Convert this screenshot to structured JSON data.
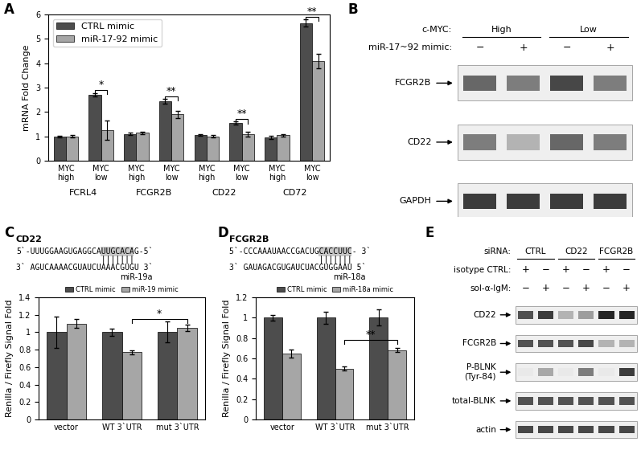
{
  "panel_labels": [
    "A",
    "B",
    "C",
    "D",
    "E"
  ],
  "chart_data": [
    {
      "type": "bar",
      "y_label": "mRNA Fold Change",
      "categories": [
        "MYC\nhigh",
        "MYC\nlow",
        "MYC\nhigh",
        "MYC\nlow",
        "MYC\nhigh",
        "MYC\nlow",
        "MYC\nhigh",
        "MYC\nlow"
      ],
      "groups": [
        "FCRL4",
        "FCGR2B",
        "CD22",
        "CD72"
      ],
      "series": [
        {
          "name": "CTRL mimic",
          "color": "#4d4d4d",
          "values": [
            1.0,
            2.7,
            1.1,
            2.45,
            1.05,
            1.55,
            0.95,
            5.65
          ],
          "errors": [
            0.03,
            0.07,
            0.04,
            0.1,
            0.04,
            0.05,
            0.06,
            0.15
          ]
        },
        {
          "name": "miR-17-92 mimic",
          "color": "#a6a6a6",
          "values": [
            1.0,
            1.25,
            1.15,
            1.9,
            1.0,
            1.1,
            1.05,
            4.1
          ],
          "errors": [
            0.05,
            0.4,
            0.05,
            0.15,
            0.05,
            0.1,
            0.05,
            0.3
          ]
        }
      ],
      "ylim": [
        0,
        6
      ],
      "yticks": [
        0,
        1,
        2,
        3,
        4,
        5,
        6
      ],
      "legend": "upper left",
      "significance": [
        {
          "label": "*",
          "from": [
            1,
            0
          ],
          "to": [
            1,
            1
          ],
          "y": 2.9
        },
        {
          "label": "**",
          "from": [
            3,
            0
          ],
          "to": [
            3,
            1
          ],
          "y": 2.65
        },
        {
          "label": "**",
          "from": [
            5,
            0
          ],
          "to": [
            5,
            1
          ],
          "y": 1.7
        },
        {
          "label": "**",
          "from": [
            7,
            0
          ],
          "to": [
            7,
            1
          ],
          "y": 5.9
        }
      ]
    },
    {
      "type": "bar",
      "title": "CD22",
      "y_label": "Renilla / Firefly Signal Fold",
      "alignment": {
        "target": "5`-UUUGGAAGUGAGGCAUUGCACAG-5`",
        "pairing": "                  |||||||",
        "mirna": "3` AGUCAAAACGUAUCUAAACGUGU 3`",
        "mirna_name": "miR-19a"
      },
      "categories": [
        "vector",
        "WT 3`UTR",
        "mut 3`UTR"
      ],
      "series": [
        {
          "name": "CTRL mimic",
          "color": "#4d4d4d",
          "values": [
            1.0,
            1.0,
            1.0
          ],
          "errors": [
            0.18,
            0.04,
            0.12
          ]
        },
        {
          "name": "miR-19 mimic",
          "color": "#a6a6a6",
          "values": [
            1.1,
            0.77,
            1.05
          ],
          "errors": [
            0.05,
            0.02,
            0.04
          ]
        }
      ],
      "ylim": [
        0,
        1.4
      ],
      "yticks": [
        0,
        0.2,
        0.4,
        0.6,
        0.8,
        1,
        1.2,
        1.4
      ],
      "legend": "top",
      "significance": [
        {
          "label": "*",
          "from": [
            1,
            1
          ],
          "to": [
            2,
            1
          ],
          "y": 1.15
        }
      ]
    },
    {
      "type": "bar",
      "title": "FCGR2B",
      "y_label": "Renilla / Firefly Signal Fold",
      "alignment": {
        "target": "5`-CCCAAAUAACCGACUGCACCUUC- 3`",
        "pairing": "                   |||||||",
        "mirna": "3` GAUAGACGUGAUCUACGUGGAAU 5`",
        "mirna_name": "miR-18a"
      },
      "categories": [
        "vector",
        "WT 3`UTR",
        "mut 3`UTR"
      ],
      "series": [
        {
          "name": "CTRL mimic",
          "color": "#4d4d4d",
          "values": [
            1.0,
            1.0,
            1.0
          ],
          "errors": [
            0.03,
            0.06,
            0.08
          ]
        },
        {
          "name": "miR-18a mimic",
          "color": "#a6a6a6",
          "values": [
            0.65,
            0.5,
            0.68
          ],
          "errors": [
            0.04,
            0.02,
            0.02
          ]
        }
      ],
      "ylim": [
        0,
        1.2
      ],
      "yticks": [
        0,
        0.2,
        0.4,
        0.6,
        0.8,
        1,
        1.2
      ],
      "legend": "top",
      "significance": [
        {
          "label": "**",
          "from": [
            1,
            1
          ],
          "to": [
            2,
            1
          ],
          "y": 0.78
        }
      ]
    }
  ],
  "blots": [
    {
      "headers": [
        {
          "name": "c-MYC:",
          "groups": [
            "High",
            "Low"
          ]
        },
        {
          "name": "miR-17~92 mimic:",
          "lanes": [
            "−",
            "+",
            "−",
            "+"
          ]
        }
      ],
      "rows": [
        {
          "label": "FCGR2B",
          "intensity": [
            0.7,
            0.6,
            0.85,
            0.6
          ]
        },
        {
          "label": "CD22",
          "intensity": [
            0.6,
            0.35,
            0.7,
            0.6
          ]
        },
        {
          "label": "GAPDH",
          "intensity": [
            0.9,
            0.9,
            0.9,
            0.9
          ]
        }
      ]
    },
    {
      "headers": [
        {
          "name": "siRNA:",
          "groups": [
            "CTRL",
            "CD22",
            "FCGR2B"
          ]
        },
        {
          "name": "isotype CTRL:",
          "lanes": [
            "+",
            "−",
            "+",
            "−",
            "+",
            "−"
          ]
        },
        {
          "name": "sol-α-IgM:",
          "lanes": [
            "−",
            "+",
            "−",
            "+",
            "−",
            "+"
          ]
        }
      ],
      "rows": [
        {
          "label": "CD22",
          "intensity": [
            0.8,
            0.9,
            0.35,
            0.45,
            1.0,
            1.0
          ]
        },
        {
          "label": "FCGR2B",
          "intensity": [
            0.8,
            0.8,
            0.8,
            0.85,
            0.35,
            0.35
          ]
        },
        {
          "label": "P-BLNK\n(Tyr-84)",
          "intensity": [
            0.1,
            0.4,
            0.1,
            0.6,
            0.1,
            0.9
          ]
        },
        {
          "label": "total-BLNK",
          "intensity": [
            0.8,
            0.8,
            0.8,
            0.8,
            0.8,
            0.8
          ]
        },
        {
          "label": "actin",
          "intensity": [
            0.85,
            0.85,
            0.85,
            0.85,
            0.85,
            0.85
          ]
        }
      ]
    }
  ]
}
